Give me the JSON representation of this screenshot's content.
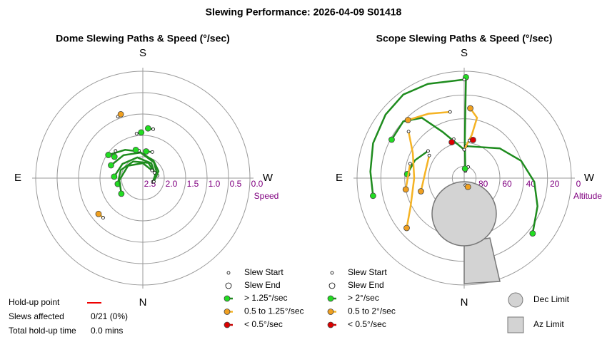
{
  "title": "Slewing Performance: 2026-04-09 S01418",
  "chart_data": [
    {
      "type": "polar",
      "title": "Dome Slewing Paths & Speed (°/sec)",
      "compass": {
        "south": "S",
        "west": "W",
        "north": "N",
        "east": "E"
      },
      "r_label": "Speed",
      "rlim": [
        2.5,
        0
      ],
      "rticks": [
        2.5,
        {
          "value": 2,
          "label": "2.0"
        },
        1.5,
        {
          "value": 1,
          "label": "1.0"
        },
        0.5,
        {
          "value": 0,
          "label": "0.0"
        }
      ],
      "grid": true,
      "legend": {
        "start": "Slew Start",
        "end": "Slew End"
      },
      "series": [
        {
          "name": "> 1.25°/sec",
          "color": "#1e8c1e",
          "marker_color": "#22dd22",
          "slews": [
            [
              [
                260,
                2.15
              ],
              [
                215,
                2.05
              ],
              [
                175,
                1.9
              ],
              [
                140,
                1.8
              ],
              [
                112,
                1.7
              ]
            ],
            [
              [
                290,
                2.25
              ],
              [
                255,
                2.2
              ],
              [
                210,
                2.1
              ],
              [
                165,
                2.0
              ],
              [
                125,
                1.92
              ],
              [
                93,
                1.83
              ]
            ],
            [
              [
                245,
                2.2
              ],
              [
                200,
                2.12
              ],
              [
                150,
                2.05
              ],
              [
                110,
                1.95
              ],
              [
                77,
                1.9
              ]
            ],
            [
              [
                230,
                2.22
              ],
              [
                180,
                2.15
              ],
              [
                130,
                2.05
              ],
              [
                85,
                1.95
              ],
              [
                54,
                1.88
              ]
            ],
            [
              [
                288,
                2.23
              ],
              [
                246,
                2.1
              ],
              [
                211,
                2.02
              ],
              [
                172,
                1.87
              ],
              [
                148,
                1.72
              ],
              [
                124,
                1.53
              ]
            ],
            [
              [
                200,
                1.85
              ],
              [
                187,
                1.87
              ]
            ],
            [
              [
                172,
                1.85
              ],
              [
                166,
                1.82
              ]
            ],
            [
              [
                192,
                1.33
              ],
              [
                186,
                1.33
              ]
            ],
            [
              [
                172,
                1.45
              ],
              [
                178,
                1.43
              ]
            ],
            [
              [
                135,
                1.6
              ],
              [
                127,
                1.67
              ]
            ]
          ]
        },
        {
          "name": "0.5 to 1.25°/sec",
          "color": "#f5b324",
          "marker_color": "#f0a020",
          "slews": [
            [
              [
                158,
                0.95
              ],
              [
                161,
                0.92
              ]
            ],
            [
              [
                45,
                1.19
              ],
              [
                51,
                1.17
              ]
            ]
          ]
        },
        {
          "name": "< 0.5°/sec",
          "color": "#cc0000",
          "marker_color": "#dd0000",
          "slews": []
        }
      ]
    },
    {
      "type": "polar",
      "title": "Scope Slewing Paths & Speed (°/sec)",
      "compass": {
        "south": "S",
        "west": "W",
        "north": "N",
        "east": "E"
      },
      "r_label": "Altitude",
      "rlim": [
        90,
        0
      ],
      "rticks": [
        80,
        60,
        40,
        20,
        0
      ],
      "grid": true,
      "legend": {
        "start": "Slew Start",
        "end": "Slew End"
      },
      "limit_labels": {
        "dec": "Dec Limit",
        "az": "Az Limit"
      },
      "series": [
        {
          "name": "> 2°/sec",
          "color": "#1e8c1e",
          "marker_color": "#22dd22",
          "slews": [
            [
              [
                190,
                84
              ],
              [
                181,
                60
              ],
              [
                181,
                36
              ],
              [
                181,
                5
              ]
            ],
            [
              [
                180,
                7
              ],
              [
                159,
                5
              ],
              [
                144,
                3
              ],
              [
                129,
                5
              ],
              [
                111,
                8
              ],
              [
                94,
                11
              ],
              [
                79,
                12
              ]
            ],
            [
              [
                183,
                63
              ],
              [
                230,
                51
              ],
              [
                253,
                40
              ],
              [
                273,
                31
              ],
              [
                291,
                24
              ],
              [
                309,
                16
              ]
            ],
            [
              [
                180,
                66
              ],
              [
                155,
                47
              ],
              [
                145,
                28
              ],
              [
                133,
                20
              ],
              [
                118,
                21
              ]
            ],
            [
              [
                127,
                52
              ],
              [
                110,
                46
              ],
              [
                94,
                42
              ]
            ],
            [
              [
                200,
                80
              ],
              [
                185,
                82
              ]
            ]
          ]
        },
        {
          "name": "0.5 to 2°/sec",
          "color": "#f5b324",
          "marker_color": "#f0a020",
          "slews": [
            [
              [
                168,
                33
              ],
              [
                151,
                28
              ],
              [
                136,
                22
              ]
            ],
            [
              [
                130,
                29
              ],
              [
                116,
                42
              ],
              [
                90,
                48
              ],
              [
                62,
                39
              ],
              [
                49,
                26
              ]
            ],
            [
              [
                123,
                55
              ],
              [
                100,
                57
              ],
              [
                73,
                52
              ]
            ],
            [
              [
                105,
                43
              ],
              [
                79,
                40
              ]
            ],
            [
              [
                180,
                66
              ],
              [
                190,
                53
              ],
              [
                192,
                38
              ],
              [
                185,
                31
              ]
            ],
            [
              [
                350,
                84
              ],
              [
                337,
                82
              ]
            ]
          ]
        },
        {
          "name": "< 0.5°/sec",
          "color": "#cc0000",
          "marker_color": "#dd0000",
          "slews": [
            [
              [
                165,
                56
              ],
              [
                161,
                58
              ]
            ],
            [
              [
                188,
                58
              ],
              [
                193,
                57
              ]
            ]
          ]
        }
      ]
    }
  ],
  "holdup": {
    "point_label": "Hold-up point",
    "affected_label": "Slews affected",
    "affected": "0/21 (0%)",
    "time_label": "Total hold-up time",
    "time": "0.0 mins"
  }
}
